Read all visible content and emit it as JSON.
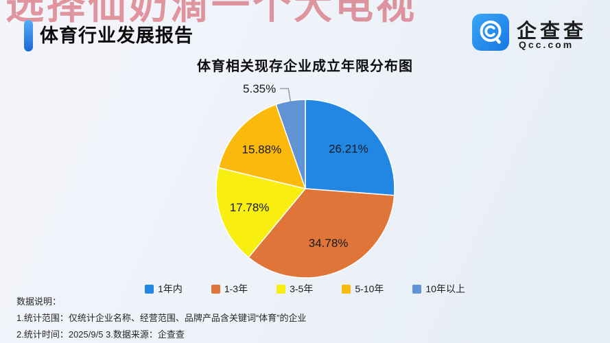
{
  "watermark": {
    "text": "选择仙奶滴一个大电视",
    "color": "#cf4652"
  },
  "header": {
    "title": "体育行业发展报告",
    "accent_color": "#1f7ae0"
  },
  "logo": {
    "name": "企查查",
    "domain": "Qcc.com",
    "icon": "qcc-magnifier-icon",
    "brand_color": "#2196f3"
  },
  "chart_data": {
    "type": "pie",
    "title": "体育相关现存企业成立年限分布图",
    "unit": "%",
    "start_angle_deg": 0,
    "direction": "clockwise",
    "legend_position": "bottom",
    "grid": false,
    "slices": [
      {
        "name": "1年内",
        "value": 26.21,
        "label": "26.21%",
        "color": "#2287e2",
        "label_placement": "inside"
      },
      {
        "name": "1-3年",
        "value": 34.78,
        "label": "34.78%",
        "color": "#e0753a",
        "label_placement": "inside"
      },
      {
        "name": "3-5年",
        "value": 17.78,
        "label": "17.78%",
        "color": "#f8ee10",
        "label_placement": "inside"
      },
      {
        "name": "5-10年",
        "value": 15.88,
        "label": "15.88%",
        "color": "#fbb90b",
        "label_placement": "inside"
      },
      {
        "name": "10年以上",
        "value": 5.35,
        "label": "5.35%",
        "color": "#6094d5",
        "label_placement": "outside"
      }
    ]
  },
  "notes": {
    "heading": "数据说明：",
    "lines": [
      "1.统计范围：仅统计企业名称、经营范围、品牌产品含关键词“体育”的企业",
      "2.统计时间：2025/9/5  3.数据来源：企查查"
    ]
  }
}
